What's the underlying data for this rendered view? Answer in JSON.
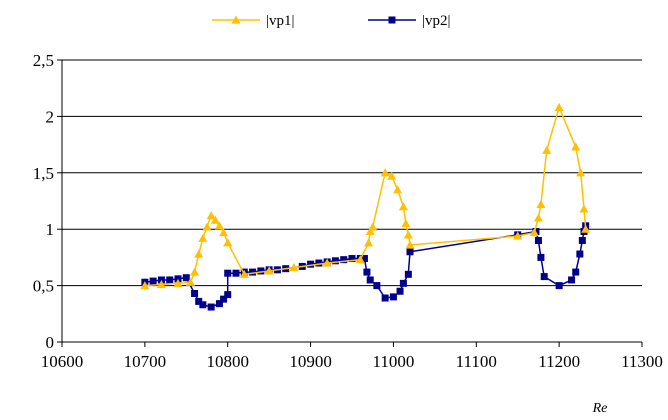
{
  "chart_data": {
    "type": "line",
    "title": "",
    "xlabel": "Re",
    "ylabel": "",
    "xlim": [
      10600,
      11300
    ],
    "ylim": [
      0,
      2.5
    ],
    "x_ticks": [
      "10600",
      "10700",
      "10800",
      "10900",
      "11000",
      "11100",
      "11200",
      "11300"
    ],
    "y_ticks": [
      "0",
      "0,5",
      "1",
      "1,5",
      "2",
      "2,5"
    ],
    "grid": "horizontal",
    "legend_position": "top",
    "series": [
      {
        "name": "|vp1|",
        "color": "#FFC000",
        "marker": "triangle",
        "points": [
          [
            10700,
            0.5
          ],
          [
            10720,
            0.51
          ],
          [
            10740,
            0.52
          ],
          [
            10755,
            0.53
          ],
          [
            10760,
            0.62
          ],
          [
            10765,
            0.78
          ],
          [
            10770,
            0.92
          ],
          [
            10775,
            1.02
          ],
          [
            10780,
            1.12
          ],
          [
            10785,
            1.08
          ],
          [
            10790,
            1.03
          ],
          [
            10795,
            0.97
          ],
          [
            10800,
            0.88
          ],
          [
            10820,
            0.6
          ],
          [
            10850,
            0.63
          ],
          [
            10880,
            0.66
          ],
          [
            10920,
            0.7
          ],
          [
            10960,
            0.73
          ],
          [
            10970,
            0.88
          ],
          [
            10972,
            0.98
          ],
          [
            10975,
            1.02
          ],
          [
            10990,
            1.5
          ],
          [
            10998,
            1.47
          ],
          [
            11005,
            1.35
          ],
          [
            11012,
            1.2
          ],
          [
            11015,
            1.05
          ],
          [
            11018,
            0.95
          ],
          [
            11020,
            0.86
          ],
          [
            11150,
            0.94
          ],
          [
            11170,
            0.97
          ],
          [
            11175,
            1.1
          ],
          [
            11178,
            1.22
          ],
          [
            11185,
            1.7
          ],
          [
            11200,
            2.08
          ],
          [
            11220,
            1.73
          ],
          [
            11226,
            1.5
          ],
          [
            11230,
            1.18
          ],
          [
            11232,
            1.0
          ]
        ]
      },
      {
        "name": "|vp2|",
        "color": "#00008B",
        "marker": "square",
        "points": [
          [
            10700,
            0.53
          ],
          [
            10710,
            0.54
          ],
          [
            10720,
            0.55
          ],
          [
            10730,
            0.55
          ],
          [
            10740,
            0.56
          ],
          [
            10750,
            0.57
          ],
          [
            10760,
            0.43
          ],
          [
            10765,
            0.36
          ],
          [
            10770,
            0.33
          ],
          [
            10780,
            0.31
          ],
          [
            10790,
            0.34
          ],
          [
            10795,
            0.38
          ],
          [
            10800,
            0.42
          ],
          [
            10800,
            0.61
          ],
          [
            10810,
            0.61
          ],
          [
            10820,
            0.62
          ],
          [
            10830,
            0.62
          ],
          [
            10840,
            0.63
          ],
          [
            10850,
            0.64
          ],
          [
            10860,
            0.64
          ],
          [
            10870,
            0.65
          ],
          [
            10890,
            0.67
          ],
          [
            10900,
            0.69
          ],
          [
            10910,
            0.7
          ],
          [
            10920,
            0.71
          ],
          [
            10930,
            0.72
          ],
          [
            10940,
            0.73
          ],
          [
            10950,
            0.74
          ],
          [
            10960,
            0.74
          ],
          [
            10965,
            0.74
          ],
          [
            10968,
            0.62
          ],
          [
            10972,
            0.55
          ],
          [
            10980,
            0.5
          ],
          [
            10990,
            0.39
          ],
          [
            11000,
            0.4
          ],
          [
            11008,
            0.45
          ],
          [
            11012,
            0.52
          ],
          [
            11018,
            0.6
          ],
          [
            11020,
            0.8
          ],
          [
            11150,
            0.95
          ],
          [
            11172,
            0.98
          ],
          [
            11175,
            0.9
          ],
          [
            11178,
            0.75
          ],
          [
            11182,
            0.58
          ],
          [
            11200,
            0.5
          ],
          [
            11215,
            0.55
          ],
          [
            11220,
            0.62
          ],
          [
            11225,
            0.78
          ],
          [
            11228,
            0.9
          ],
          [
            11230,
            0.98
          ],
          [
            11232,
            1.03
          ]
        ]
      }
    ]
  }
}
